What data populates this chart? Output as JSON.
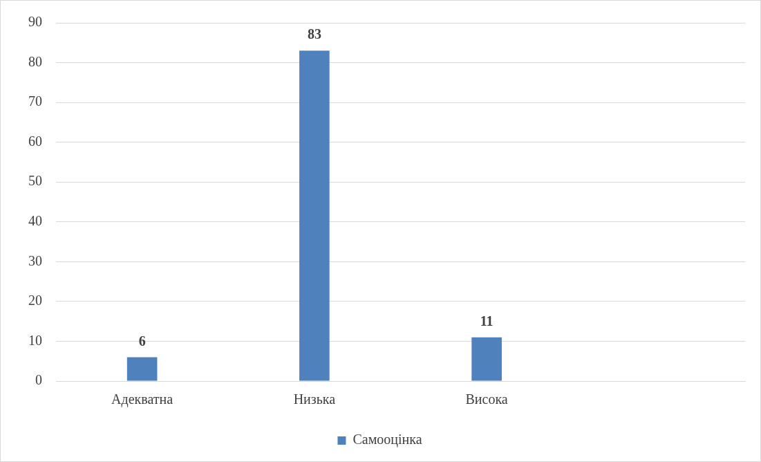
{
  "chart_data": {
    "type": "bar",
    "categories": [
      "Адекватна",
      "Низька",
      "Висока",
      null
    ],
    "series": [
      {
        "name": "Самооцінка",
        "color": "#4f81bd",
        "values": [
          6,
          83,
          11,
          null
        ]
      }
    ],
    "ylim": [
      0,
      90
    ],
    "yticks": [
      0,
      10,
      20,
      30,
      40,
      50,
      60,
      70,
      80,
      90
    ],
    "grid": "y",
    "legend": "bottom",
    "data_labels": true
  }
}
